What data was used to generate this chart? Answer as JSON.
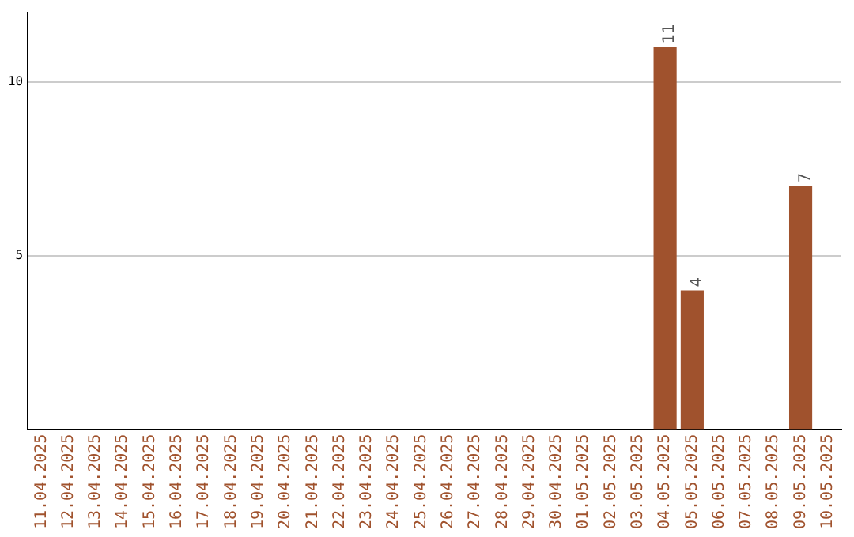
{
  "chart_data": {
    "type": "bar",
    "categories": [
      "11.04.2025",
      "12.04.2025",
      "13.04.2025",
      "14.04.2025",
      "15.04.2025",
      "16.04.2025",
      "17.04.2025",
      "18.04.2025",
      "19.04.2025",
      "20.04.2025",
      "21.04.2025",
      "22.04.2025",
      "23.04.2025",
      "24.04.2025",
      "25.04.2025",
      "26.04.2025",
      "27.04.2025",
      "28.04.2025",
      "29.04.2025",
      "30.04.2025",
      "01.05.2025",
      "02.05.2025",
      "03.05.2025",
      "04.05.2025",
      "05.05.2025",
      "06.05.2025",
      "07.05.2025",
      "08.05.2025",
      "09.05.2025",
      "10.05.2025"
    ],
    "values": [
      0,
      0,
      0,
      0,
      0,
      0,
      0,
      0,
      0,
      0,
      0,
      0,
      0,
      0,
      0,
      0,
      0,
      0,
      0,
      0,
      0,
      0,
      0,
      11,
      4,
      0,
      0,
      0,
      7,
      0
    ],
    "value_labels": [
      null,
      null,
      null,
      null,
      null,
      null,
      null,
      null,
      null,
      null,
      null,
      null,
      null,
      null,
      null,
      null,
      null,
      null,
      null,
      null,
      null,
      null,
      null,
      "11",
      "4",
      null,
      null,
      null,
      "7",
      null
    ],
    "color": "#a0522d",
    "ylim": [
      0,
      12
    ],
    "yticks": [
      5,
      10
    ],
    "grid": "y",
    "legend": false
  }
}
